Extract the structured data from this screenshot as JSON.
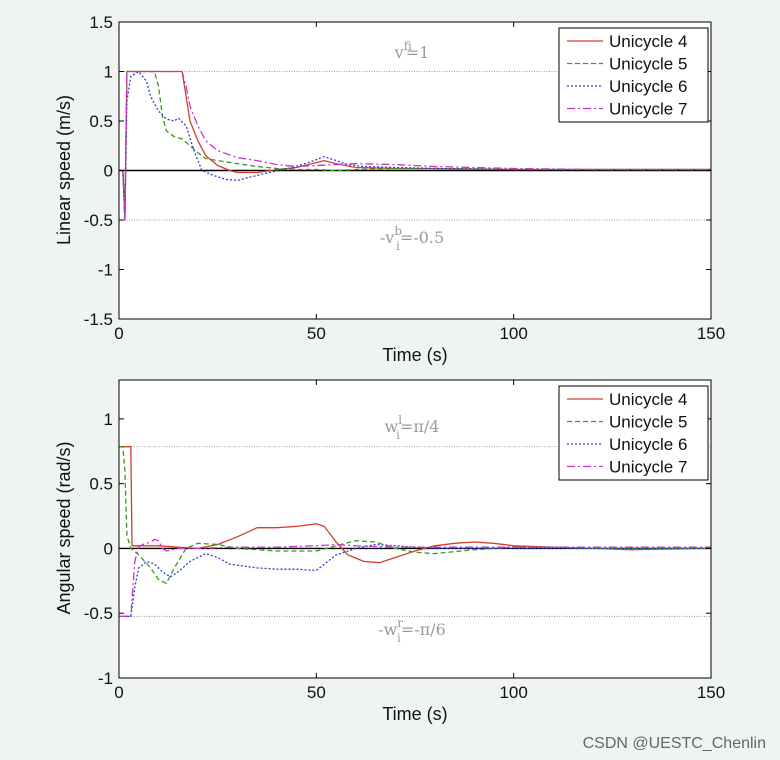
{
  "colors": {
    "background": "#f0f4f0",
    "plot_background": "#ffffff",
    "unicycle4": "#d2402a",
    "unicycle5": "#3a9a1e",
    "unicycle6": "#2a3fcf",
    "unicycle7": "#cc33cc",
    "reference": "#808080"
  },
  "watermark": "CSDN @UESTC_Chenlin",
  "chart_data": [
    {
      "type": "line",
      "xlabel": "Time (s)",
      "ylabel": "Linear speed (m/s)",
      "xlim": [
        0,
        150
      ],
      "ylim": [
        -1.5,
        1.5
      ],
      "xticks": [
        "0",
        "50",
        "100",
        "150"
      ],
      "yticks": [
        "-1.5",
        "-1",
        "-0.5",
        "0",
        "0.5",
        "1",
        "1.5"
      ],
      "grid": false,
      "legend_position": "top-right",
      "reference_lines": [
        {
          "y": 1,
          "style": "dotted"
        },
        {
          "y": 0,
          "style": "solid"
        },
        {
          "y": -0.5,
          "style": "dotted"
        }
      ],
      "annotations": [
        {
          "base": "v",
          "sup": "f",
          "sub": "i",
          "suffix": "=1",
          "x": 75,
          "y": 1.12
        },
        {
          "base": "-v",
          "sup": "b",
          "sub": "i",
          "suffix": "=-0.5",
          "x": 75,
          "y": -0.72
        }
      ],
      "series": [
        {
          "name": "Unicycle 4",
          "color": "#d2402a",
          "dash": "",
          "x": [
            0,
            1,
            1.5,
            2,
            15,
            16,
            17,
            18,
            20,
            22,
            25,
            28,
            30,
            35,
            40,
            45,
            50,
            52,
            55,
            60,
            70,
            80,
            100,
            120,
            150
          ],
          "y": [
            0,
            0,
            -0.5,
            1,
            1,
            1,
            0.75,
            0.5,
            0.3,
            0.15,
            0.05,
            0,
            -0.02,
            -0.02,
            0.01,
            0.03,
            0.08,
            0.1,
            0.07,
            0.03,
            0.02,
            0.02,
            0.01,
            0.01,
            0.01
          ]
        },
        {
          "name": "Unicycle 5",
          "color": "#3a9a1e",
          "dash": "5,3",
          "x": [
            0,
            1,
            1.5,
            2,
            9,
            10,
            11,
            12,
            14,
            16,
            18,
            20,
            22,
            25,
            30,
            35,
            40,
            45,
            50,
            55,
            60,
            70,
            80,
            100,
            120,
            150
          ],
          "y": [
            0,
            0,
            -0.5,
            1,
            1,
            0.85,
            0.55,
            0.4,
            0.34,
            0.32,
            0.25,
            0.18,
            0.12,
            0.1,
            0.07,
            0.04,
            0.02,
            0.01,
            0.01,
            0.0,
            0.01,
            0.02,
            0.02,
            0.01,
            0.01,
            0.01
          ]
        },
        {
          "name": "Unicycle 6",
          "color": "#2a3fcf",
          "dash": "2,2",
          "x": [
            0,
            1,
            1.5,
            2,
            3,
            5,
            7,
            8,
            10,
            12,
            14,
            15,
            17,
            19,
            21,
            24,
            27,
            30,
            33,
            38,
            43,
            48,
            52,
            55,
            58,
            62,
            70,
            80,
            100,
            120,
            150
          ],
          "y": [
            0,
            0,
            -0.5,
            0.7,
            0.95,
            1,
            0.9,
            0.75,
            0.6,
            0.52,
            0.5,
            0.53,
            0.45,
            0.2,
            0.0,
            -0.05,
            -0.09,
            -0.1,
            -0.07,
            -0.02,
            0.02,
            0.08,
            0.14,
            0.1,
            0.06,
            0.04,
            0.03,
            0.02,
            0.01,
            0.01,
            0.01
          ]
        },
        {
          "name": "Unicycle 7",
          "color": "#cc33cc",
          "dash": "8,3,2,3",
          "x": [
            0,
            1,
            1.5,
            2,
            15,
            16,
            17,
            18,
            20,
            22,
            25,
            30,
            35,
            40,
            45,
            50,
            55,
            60,
            70,
            80,
            100,
            120,
            150
          ],
          "y": [
            0,
            0,
            -0.5,
            1,
            1,
            1,
            0.85,
            0.65,
            0.45,
            0.3,
            0.2,
            0.13,
            0.1,
            0.06,
            0.04,
            0.05,
            0.06,
            0.07,
            0.06,
            0.04,
            0.02,
            0.01,
            0.01
          ]
        }
      ]
    },
    {
      "type": "line",
      "xlabel": "Time (s)",
      "ylabel": "Angular speed (rad/s)",
      "xlim": [
        0,
        150
      ],
      "ylim": [
        -1,
        1.3
      ],
      "xticks": [
        "0",
        "50",
        "100",
        "150"
      ],
      "yticks": [
        "-1",
        "-0.5",
        "0",
        "0.5",
        "1"
      ],
      "grid": false,
      "legend_position": "top-right",
      "reference_lines": [
        {
          "y": 0.785,
          "style": "dotted"
        },
        {
          "y": 0,
          "style": "solid"
        },
        {
          "y": -0.524,
          "style": "dotted"
        }
      ],
      "annotations": [
        {
          "base": "w",
          "sup": "l",
          "sub": "i",
          "suffix": "=π/4",
          "x": 75,
          "y": 0.95
        },
        {
          "base": "-w",
          "sup": "r",
          "sub": "i",
          "suffix": "=-π/6",
          "x": 75,
          "y": -0.7
        }
      ],
      "series": [
        {
          "name": "Unicycle 4",
          "color": "#d2402a",
          "dash": "",
          "x": [
            0,
            2,
            3,
            3.3,
            5,
            10,
            15,
            20,
            25,
            30,
            35,
            40,
            45,
            50,
            52,
            55,
            58,
            62,
            66,
            70,
            75,
            80,
            85,
            90,
            95,
            100,
            110,
            120,
            130,
            150
          ],
          "y": [
            0.785,
            0.785,
            0.785,
            0.02,
            0.02,
            0.02,
            0.01,
            0.0,
            0.03,
            0.09,
            0.16,
            0.16,
            0.17,
            0.19,
            0.17,
            0.05,
            -0.05,
            -0.1,
            -0.11,
            -0.07,
            -0.02,
            0.02,
            0.04,
            0.05,
            0.04,
            0.02,
            0.01,
            0.0,
            -0.01,
            0.0
          ]
        },
        {
          "name": "Unicycle 5",
          "color": "#3a9a1e",
          "dash": "5,3",
          "x": [
            0,
            1,
            1.5,
            2,
            3,
            5,
            8,
            10,
            12,
            14,
            17,
            20,
            25,
            30,
            40,
            50,
            55,
            60,
            65,
            70,
            75,
            80,
            90,
            100,
            110,
            120,
            150
          ],
          "y": [
            0.785,
            0.785,
            0.6,
            0.1,
            0.0,
            -0.05,
            -0.15,
            -0.24,
            -0.27,
            -0.15,
            0.0,
            0.04,
            0.03,
            0.0,
            -0.02,
            -0.02,
            0.02,
            0.06,
            0.05,
            0.0,
            -0.03,
            -0.04,
            -0.01,
            0.01,
            0.01,
            0.0,
            0.0
          ]
        },
        {
          "name": "Unicycle 6",
          "color": "#2a3fcf",
          "dash": "2,2",
          "x": [
            0,
            3,
            4,
            5,
            7,
            9,
            11,
            12,
            13,
            15,
            18,
            22,
            25,
            28,
            30,
            35,
            40,
            45,
            50,
            55,
            60,
            65,
            70,
            80,
            90,
            100,
            120,
            150
          ],
          "y": [
            -0.524,
            -0.524,
            -0.3,
            -0.15,
            -0.1,
            -0.12,
            -0.18,
            -0.2,
            -0.22,
            -0.18,
            -0.1,
            -0.04,
            -0.07,
            -0.12,
            -0.13,
            -0.15,
            -0.16,
            -0.16,
            -0.17,
            -0.05,
            0.0,
            0.03,
            0.02,
            0.0,
            0.0,
            0.0,
            0.0,
            0.0
          ]
        },
        {
          "name": "Unicycle 7",
          "color": "#cc33cc",
          "dash": "8,3,2,3",
          "x": [
            0,
            3,
            4,
            5,
            6,
            8,
            9,
            10,
            11,
            12,
            15,
            20,
            30,
            40,
            50,
            55,
            60,
            70,
            80,
            100,
            120,
            150
          ],
          "y": [
            -0.524,
            -0.524,
            -0.1,
            0.01,
            0.03,
            0.05,
            0.07,
            0.06,
            0.0,
            -0.02,
            0.0,
            0.0,
            0.01,
            0.01,
            0.02,
            0.03,
            0.02,
            0.01,
            0.01,
            0.01,
            0.01,
            0.01
          ]
        }
      ]
    }
  ]
}
